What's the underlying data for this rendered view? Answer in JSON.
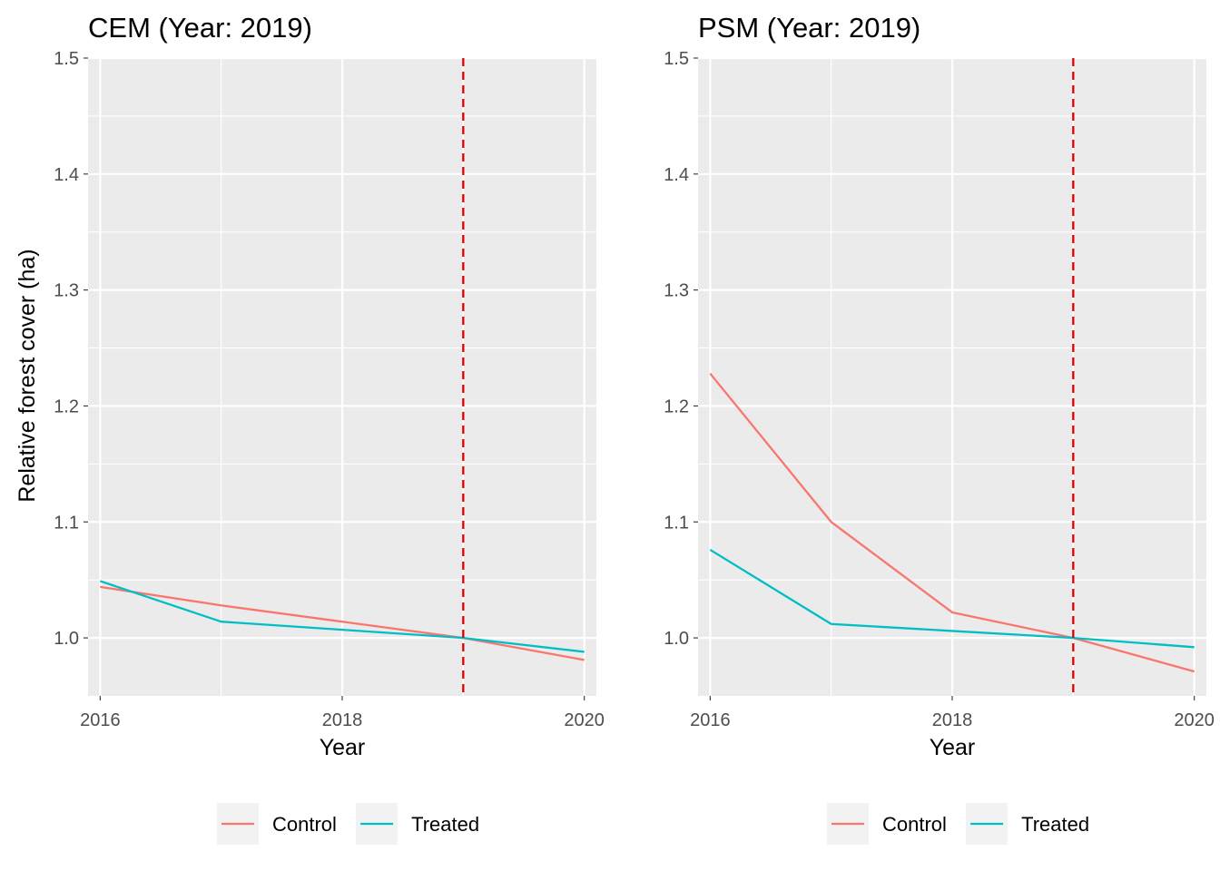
{
  "chart_data": [
    {
      "type": "line",
      "title": "CEM (Year: 2019)",
      "xlabel": "Year",
      "ylabel": "Relative forest cover (ha)",
      "x": [
        2016,
        2017,
        2018,
        2019,
        2020
      ],
      "series": [
        {
          "name": "Control",
          "color": "#F8766D",
          "values": [
            1.044,
            1.028,
            1.014,
            1.0,
            0.981
          ]
        },
        {
          "name": "Treated",
          "color": "#00BFC4",
          "values": [
            1.049,
            1.014,
            1.007,
            1.0,
            0.988
          ]
        }
      ],
      "xticks": [
        "2016",
        "2018",
        "2020"
      ],
      "yticks": [
        "1.0",
        "1.1",
        "1.2",
        "1.3",
        "1.4",
        "1.5"
      ],
      "xlim": [
        2015.9,
        2020.1
      ],
      "ylim": [
        0.95,
        1.5
      ],
      "vline": {
        "x": 2019,
        "color": "#DD0000",
        "style": "dashed"
      },
      "grid": true,
      "legend_position": "bottom"
    },
    {
      "type": "line",
      "title": "PSM (Year: 2019)",
      "xlabel": "Year",
      "ylabel": "",
      "x": [
        2016,
        2017,
        2018,
        2019,
        2020
      ],
      "series": [
        {
          "name": "Control",
          "color": "#F8766D",
          "values": [
            1.228,
            1.1,
            1.022,
            1.0,
            0.971
          ]
        },
        {
          "name": "Treated",
          "color": "#00BFC4",
          "values": [
            1.076,
            1.012,
            1.006,
            1.0,
            0.992
          ]
        }
      ],
      "xticks": [
        "2016",
        "2018",
        "2020"
      ],
      "yticks": [
        "1.0",
        "1.1",
        "1.2",
        "1.3",
        "1.4",
        "1.5"
      ],
      "xlim": [
        2015.9,
        2020.1
      ],
      "ylim": [
        0.95,
        1.5
      ],
      "vline": {
        "x": 2019,
        "color": "#DD0000",
        "style": "dashed"
      },
      "grid": true,
      "legend_position": "bottom"
    }
  ]
}
